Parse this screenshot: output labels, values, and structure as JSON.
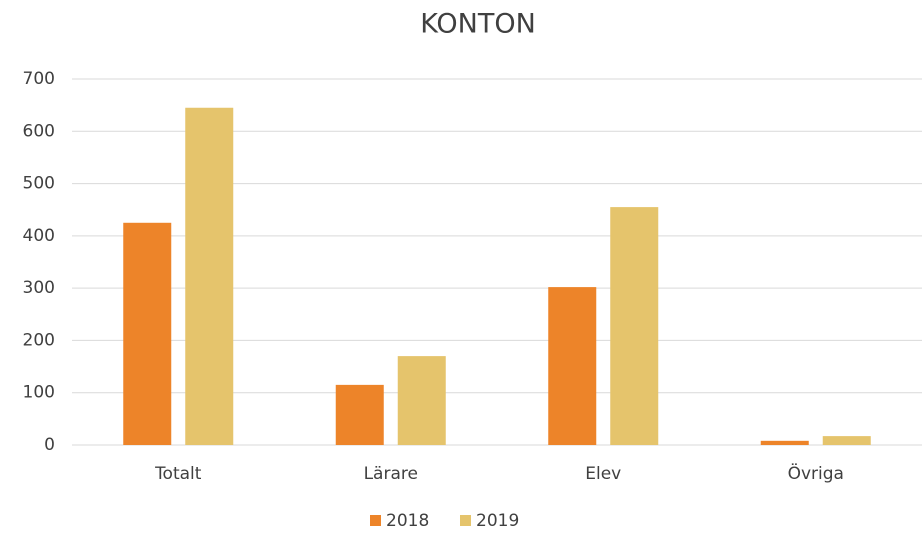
{
  "chart_data": {
    "type": "bar",
    "title": "KONTON",
    "categories": [
      "Totalt",
      "Lärare",
      "Elev",
      "Övriga"
    ],
    "series": [
      {
        "name": "2018",
        "color": "#ed8429",
        "values": [
          425,
          115,
          302,
          8
        ]
      },
      {
        "name": "2019",
        "color": "#e5c46c",
        "values": [
          645,
          170,
          455,
          17
        ]
      }
    ],
    "ylim": [
      0,
      700
    ],
    "yticks": [
      0,
      100,
      200,
      300,
      400,
      500,
      600,
      700
    ],
    "grid": true,
    "legend": "bottom"
  }
}
